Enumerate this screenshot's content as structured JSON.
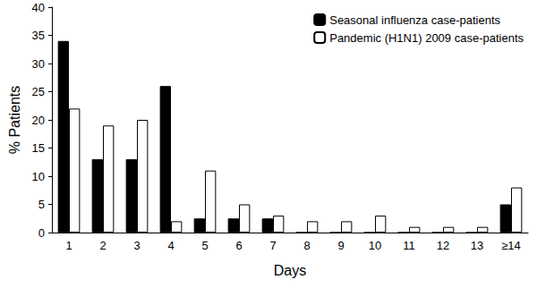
{
  "chart_data": {
    "type": "bar",
    "x_label": "Days",
    "y_label": "% Patients",
    "categories": [
      "1",
      "2",
      "3",
      "4",
      "5",
      "6",
      "7",
      "8",
      "9",
      "10",
      "11",
      "12",
      "13",
      "≥14"
    ],
    "series": [
      {
        "name": "Seasonal influenza case-patients",
        "color": "#000000",
        "values": [
          34,
          13,
          13,
          26,
          2.5,
          2.5,
          2.5,
          0,
          0,
          0,
          0,
          0,
          0,
          5
        ]
      },
      {
        "name": "Pandemic (H1N1) 2009 case-patients",
        "color": "#ffffff",
        "values": [
          22,
          19,
          20,
          2,
          11,
          5,
          3,
          2,
          2,
          3,
          1,
          1,
          1,
          8
        ]
      }
    ],
    "ylim": [
      0,
      40
    ],
    "yticks": [
      0,
      5,
      10,
      15,
      20,
      25,
      30,
      35,
      40
    ],
    "grid": false,
    "legend": "upper right"
  }
}
